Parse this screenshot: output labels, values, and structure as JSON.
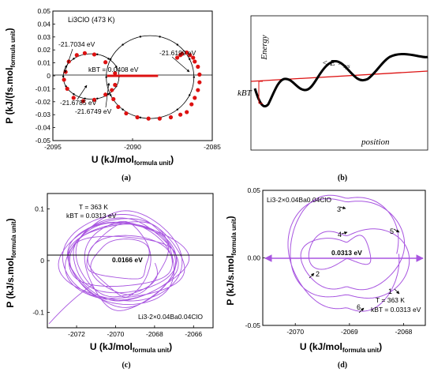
{
  "colors": {
    "red": "#dd1111",
    "purple": "#a855e0",
    "black": "#000000"
  },
  "chart_data": [
    {
      "id": "a",
      "type": "scatter",
      "caption": "(a)",
      "title": "Li3ClO (473 K)",
      "xlabel": "U (kJ/mol",
      "xlabel_sub": "formula unit",
      "xlabel_end": ")",
      "ylabel": "P (kJ/(fs.mol",
      "ylabel_sub": "formula unit",
      "ylabel_end": ")",
      "xlim": [
        -2095,
        -2085
      ],
      "ylim": [
        -0.05,
        0.05
      ],
      "xticks": [
        "-2095",
        "-2090",
        "-2085"
      ],
      "yticks": [
        "-0.05",
        "-0.04",
        "-0.03",
        "-0.02",
        "-0.01",
        "0",
        "0.01",
        "0.02",
        "0.03",
        "0.04",
        "0.05"
      ],
      "kbt_label": "kBT = 0.0408 eV",
      "kbt_bar": [
        -2091.6,
        -2088.4
      ],
      "annotations": [
        "-21.7034 eV",
        "-21.6785 eV",
        "-21.6749 eV",
        "-21.6199 eV"
      ],
      "series": [
        {
          "values": [
            [
              -2094.2,
              0.003
            ],
            [
              -2094.0,
              0.011
            ],
            [
              -2093.5,
              0.016
            ],
            [
              -2093.0,
              0.0175
            ],
            [
              -2092.4,
              0.0165
            ],
            [
              -2091.7,
              0.0105
            ],
            [
              -2091.1,
              0.002
            ],
            [
              -2091.1,
              -0.007
            ],
            [
              -2091.7,
              -0.0145
            ],
            [
              -2092.4,
              -0.0185
            ],
            [
              -2093.1,
              -0.0195
            ],
            [
              -2093.7,
              -0.017
            ],
            [
              -2094.1,
              -0.01
            ],
            [
              -2094.3,
              -0.003
            ]
          ]
        },
        {
          "values": [
            [
              -2086.6,
              0.018
            ],
            [
              -2086.4,
              0.016
            ],
            [
              -2086.2,
              0.014
            ],
            [
              -2086.1,
              0.011
            ],
            [
              -2085.9,
              0.007
            ],
            [
              -2085.8,
              0.001
            ],
            [
              -2085.8,
              -0.005
            ],
            [
              -2085.9,
              -0.011
            ],
            [
              -2086.1,
              -0.017
            ],
            [
              -2086.3,
              -0.022
            ],
            [
              -2086.6,
              -0.028
            ],
            [
              -2087.0,
              -0.03
            ],
            [
              -2087.6,
              -0.032
            ],
            [
              -2088.3,
              -0.033
            ],
            [
              -2089.0,
              -0.033
            ],
            [
              -2089.7,
              -0.032
            ],
            [
              -2090.4,
              -0.029
            ],
            [
              -2090.9,
              -0.024
            ],
            [
              -2091.2,
              -0.018
            ],
            [
              -2091.3,
              -0.011
            ]
          ]
        },
        {
          "values": [
            [
              -2087.2,
              0.014
            ],
            [
              -2087.0,
              0.016
            ],
            [
              -2086.9,
              0.017
            ]
          ]
        }
      ],
      "fit_ellipses": [
        {
          "cx": -2092.6,
          "cy": -0.0005,
          "rx": 1.75,
          "ry": 0.0175
        },
        {
          "cx": -2088.9,
          "cy": -0.001,
          "rx": 2.75,
          "ry": 0.032
        }
      ]
    },
    {
      "id": "b",
      "type": "line",
      "caption": "(b)",
      "ylabel": "Energy",
      "xlabel": "position",
      "mean_label": "< E >",
      "mean_sub": "sys",
      "kbt_label": "kBT"
    },
    {
      "id": "c",
      "type": "line",
      "caption": "(c)",
      "temperature_label": "T = 363 K",
      "kbt_label": "kBT = 0.0313 eV",
      "center_label": "0.0166 eV",
      "compound_label": "Li3-2×0.04Ba0.04ClO",
      "xlabel": "U (kJ/mol",
      "xlabel_sub": "formula unit",
      "xlabel_end": ")",
      "ylabel": "P (kJ/s.mol",
      "ylabel_sub": "formula unit",
      "ylabel_end": ")",
      "xlim": [
        -2073.5,
        -2065
      ],
      "ylim": [
        -0.13,
        0.13
      ],
      "xticks": [
        "-2072",
        "-2070",
        "-2068",
        "-2066"
      ],
      "yticks": [
        "-0.1",
        "0",
        "0.1"
      ]
    },
    {
      "id": "d",
      "type": "line",
      "caption": "(d)",
      "temperature_label": "T = 363 K",
      "kbt_label": "kBT = 0.0313 eV",
      "center_label": "0.0313 eV",
      "compound_label": "Li3-2×0.04Ba0.04ClO",
      "xlabel": "U (kJ/mol",
      "xlabel_sub": "formula unit",
      "xlabel_end": ")",
      "ylabel": "P (kJ/s.mol",
      "ylabel_sub": "formula unit",
      "ylabel_end": ")",
      "xlim": [
        -2070.6,
        -2067.6
      ],
      "ylim": [
        -0.05,
        0.05
      ],
      "xticks": [
        "-2070",
        "-2069",
        "-2068"
      ],
      "yticks": [
        "-0.05",
        "0.00",
        "0.05"
      ],
      "markers": [
        "1",
        "2",
        "3",
        "4",
        "5",
        "6"
      ]
    }
  ]
}
